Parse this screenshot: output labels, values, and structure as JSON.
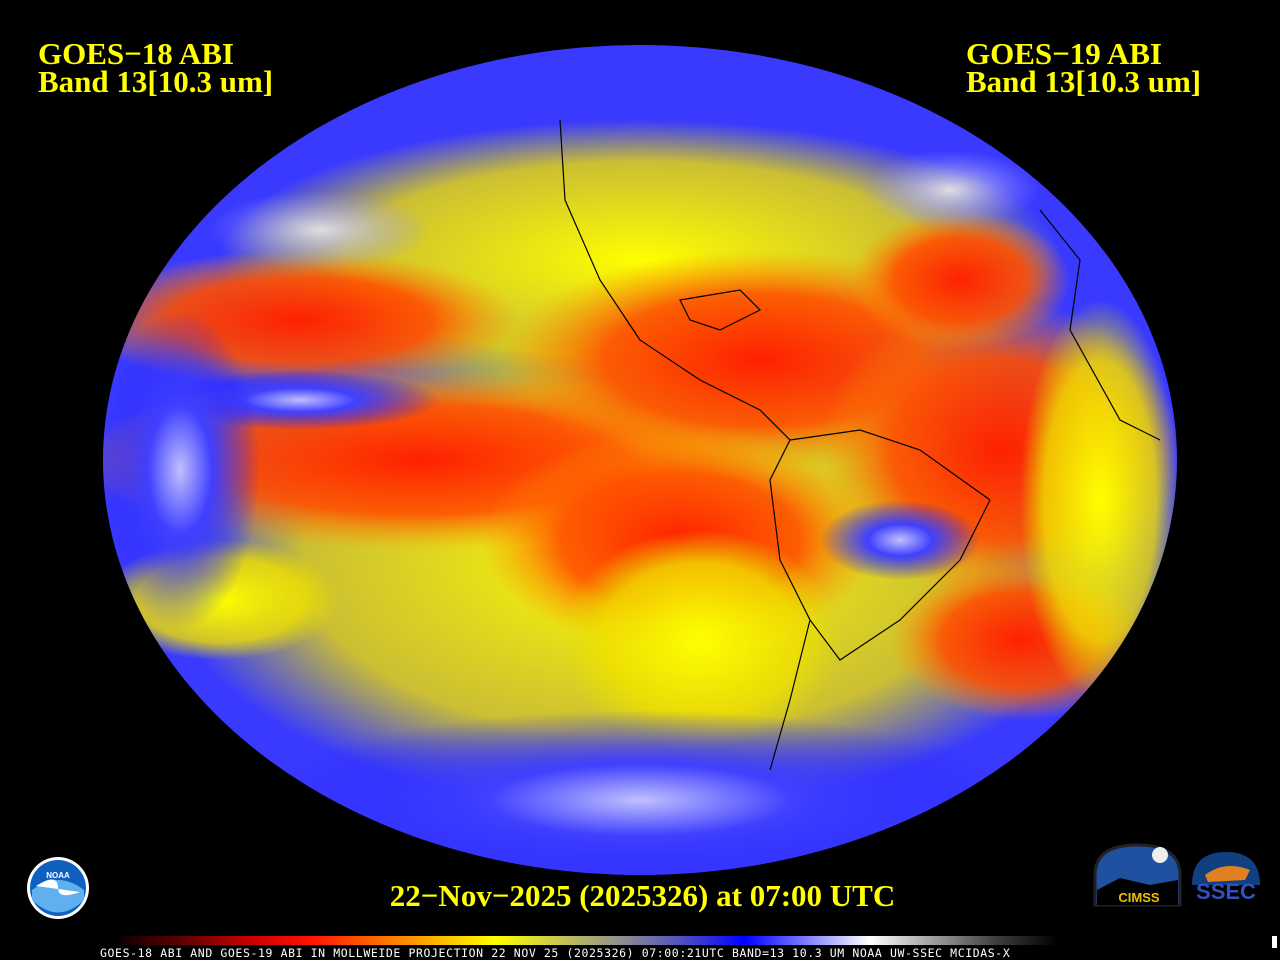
{
  "header": {
    "left": {
      "satellite": "GOES−18 ABI",
      "band": "Band 13[10.3 um]"
    },
    "right": {
      "satellite": "GOES−19 ABI",
      "band": "Band 13[10.3 um]"
    }
  },
  "timestamp": "22−Nov−2025 (2025326) at 07:00 UTC",
  "footer": "GOES-18 ABI AND GOES-19 ABI IN MOLLWEIDE PROJECTION 22 NOV 25 (2025326) 07:00:21UTC BAND=13 10.3 UM NOAA UW-SSEC MCIDAS-X",
  "projection": "Mollweide",
  "colorbar": {
    "colors": [
      "#100000",
      "#600000",
      "#c00000",
      "#ff1000",
      "#ff6000",
      "#ffb000",
      "#ffff00",
      "#c8c850",
      "#909090",
      "#5050c0",
      "#0000ff",
      "#8080ff",
      "#ffffff",
      "#a0a0a0",
      "#404040",
      "#000000"
    ]
  },
  "logos": {
    "noaa": "NOAA",
    "cimss": "CIMSS",
    "ssec": "SSEC"
  }
}
